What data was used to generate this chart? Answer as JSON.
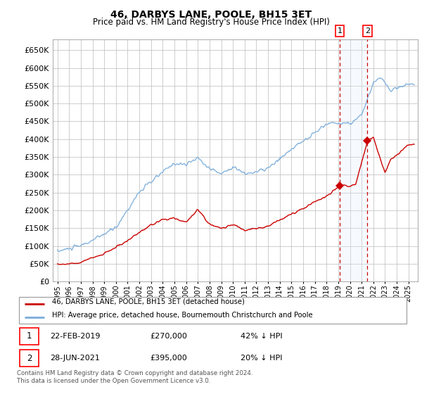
{
  "title": "46, DARBYS LANE, POOLE, BH15 3ET",
  "subtitle": "Price paid vs. HM Land Registry's House Price Index (HPI)",
  "legend_line1": "46, DARBYS LANE, POOLE, BH15 3ET (detached house)",
  "legend_line2": "HPI: Average price, detached house, Bournemouth Christchurch and Poole",
  "sale1_date": "22-FEB-2019",
  "sale1_price": "£270,000",
  "sale1_hpi": "42% ↓ HPI",
  "sale2_date": "28-JUN-2021",
  "sale2_price": "£395,000",
  "sale2_hpi": "20% ↓ HPI",
  "footnote": "Contains HM Land Registry data © Crown copyright and database right 2024.\nThis data is licensed under the Open Government Licence v3.0.",
  "price_color": "#cc0000",
  "hpi_color": "#7aaddb",
  "shade_color": "#ddeeff",
  "dashed_color": "#cc0000",
  "ylim": [
    0,
    680000
  ],
  "yticks": [
    0,
    50000,
    100000,
    150000,
    200000,
    250000,
    300000,
    350000,
    400000,
    450000,
    500000,
    550000,
    600000,
    650000
  ],
  "sale1_year": 2019.12,
  "sale1_price_val": 270000,
  "sale2_year": 2021.49,
  "sale2_price_val": 395000
}
